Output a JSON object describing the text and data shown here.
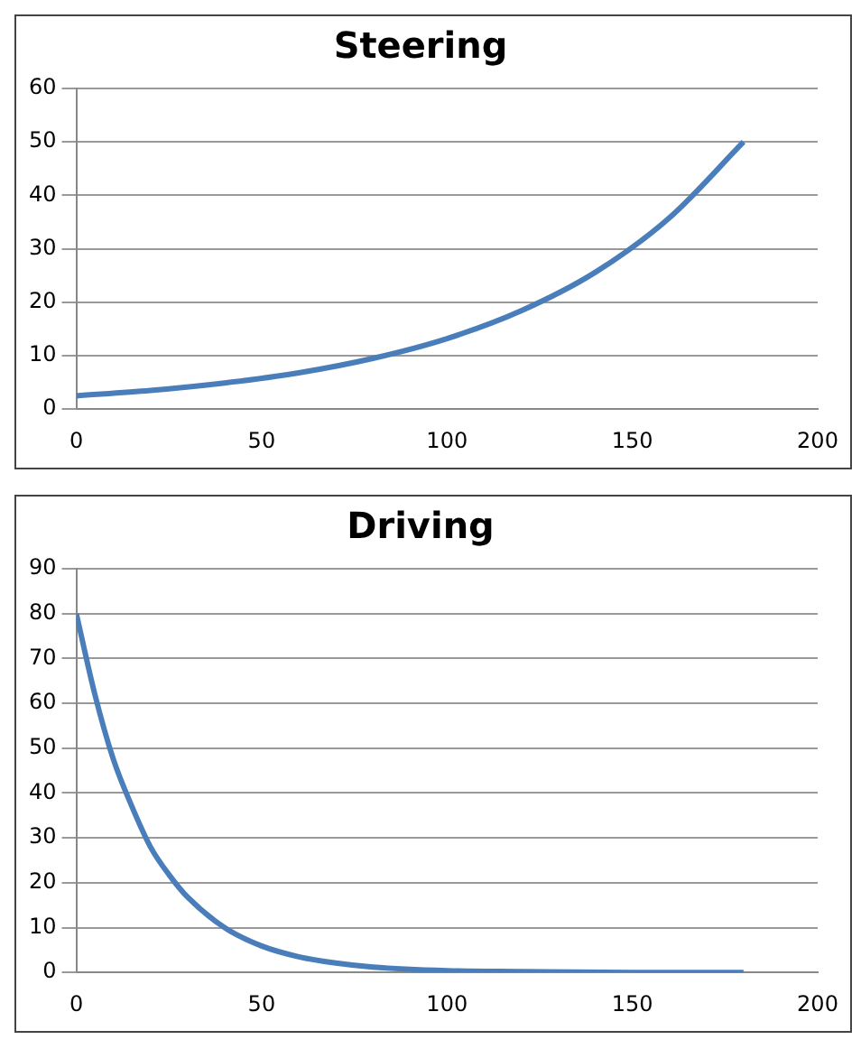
{
  "chart_data": [
    {
      "type": "line",
      "title": "Steering",
      "xlim": [
        0,
        200
      ],
      "xticks": [
        0,
        50,
        100,
        150,
        200
      ],
      "ylim": [
        0,
        60
      ],
      "yticks": [
        0,
        10,
        20,
        30,
        40,
        50,
        60
      ],
      "grid": "y",
      "legend": false,
      "marker": "none",
      "series": [
        {
          "color": "#4a7ebb",
          "x": [
            0,
            20,
            40,
            60,
            80,
            100,
            120,
            140,
            160,
            180
          ],
          "values": [
            2.5,
            3.5,
            4.9,
            6.8,
            9.5,
            13.2,
            18.4,
            25.6,
            35.8,
            50
          ]
        }
      ]
    },
    {
      "type": "line",
      "title": "Driving",
      "xlim": [
        0,
        200
      ],
      "xticks": [
        0,
        50,
        100,
        150,
        200
      ],
      "ylim": [
        0,
        90
      ],
      "yticks": [
        0,
        10,
        20,
        30,
        40,
        50,
        60,
        70,
        80,
        90
      ],
      "grid": "y",
      "legend": false,
      "marker": "none",
      "series": [
        {
          "color": "#4a7ebb",
          "x": [
            0,
            5,
            10,
            15,
            20,
            25,
            30,
            40,
            50,
            60,
            70,
            80,
            100,
            120,
            150,
            180
          ],
          "values": [
            80,
            62,
            47.5,
            37,
            28,
            21.8,
            16.8,
            10,
            5.9,
            3.5,
            2.1,
            1.2,
            0.4,
            0.2,
            0,
            0
          ]
        }
      ]
    }
  ]
}
